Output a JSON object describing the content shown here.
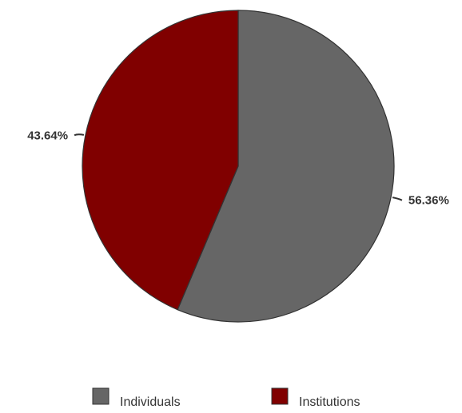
{
  "chart_data": {
    "type": "pie",
    "title": "",
    "slices": [
      {
        "name": "Individuals",
        "value": 56.36,
        "label": "56.36%",
        "color": "#666666"
      },
      {
        "name": "Institutions",
        "value": 43.64,
        "label": "43.64%",
        "color": "#800000"
      }
    ],
    "start_angle": "12 o'clock",
    "direction": "clockwise",
    "legend_position": "bottom"
  }
}
